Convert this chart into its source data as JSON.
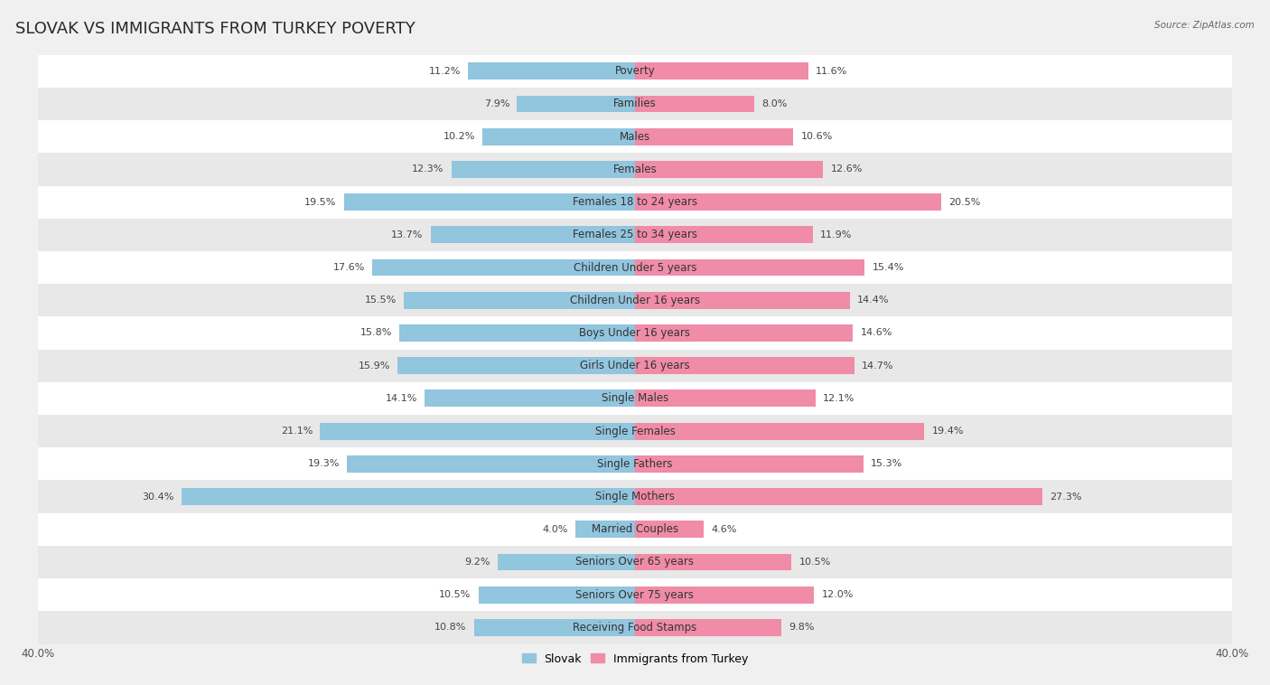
{
  "title": "SLOVAK VS IMMIGRANTS FROM TURKEY POVERTY",
  "source": "Source: ZipAtlas.com",
  "categories": [
    "Poverty",
    "Families",
    "Males",
    "Females",
    "Females 18 to 24 years",
    "Females 25 to 34 years",
    "Children Under 5 years",
    "Children Under 16 years",
    "Boys Under 16 years",
    "Girls Under 16 years",
    "Single Males",
    "Single Females",
    "Single Fathers",
    "Single Mothers",
    "Married Couples",
    "Seniors Over 65 years",
    "Seniors Over 75 years",
    "Receiving Food Stamps"
  ],
  "slovak_values": [
    11.2,
    7.9,
    10.2,
    12.3,
    19.5,
    13.7,
    17.6,
    15.5,
    15.8,
    15.9,
    14.1,
    21.1,
    19.3,
    30.4,
    4.0,
    9.2,
    10.5,
    10.8
  ],
  "turkey_values": [
    11.6,
    8.0,
    10.6,
    12.6,
    20.5,
    11.9,
    15.4,
    14.4,
    14.6,
    14.7,
    12.1,
    19.4,
    15.3,
    27.3,
    4.6,
    10.5,
    12.0,
    9.8
  ],
  "slovak_color": "#92C5DE",
  "turkey_color": "#F08CA8",
  "slovak_label": "Slovak",
  "turkey_label": "Immigrants from Turkey",
  "axis_limit": 40.0,
  "background_color": "#f0f0f0",
  "row_color_even": "#ffffff",
  "row_color_odd": "#e8e8e8",
  "title_fontsize": 13,
  "label_fontsize": 8.5,
  "value_fontsize": 8,
  "axis_label_fontsize": 8.5
}
